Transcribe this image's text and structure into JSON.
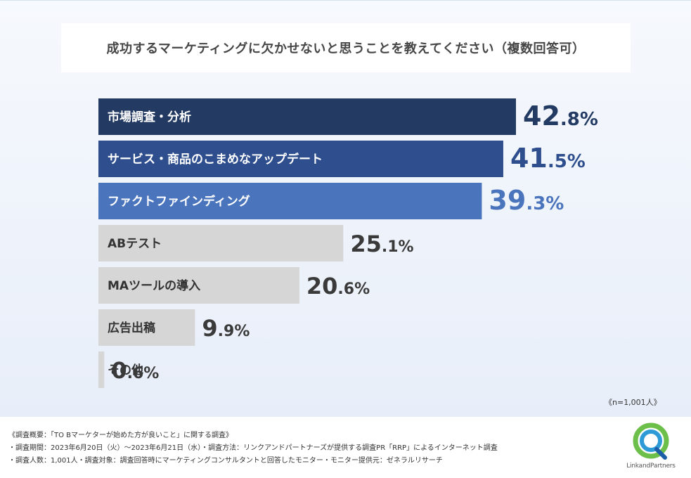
{
  "title": "成功するマーケティングに欠かせないと思うことを教えてください（複数回答可）",
  "sample_size": "《n=1,001人》",
  "chart_data": {
    "type": "bar",
    "orientation": "horizontal",
    "title": "成功するマーケティングに欠かせないと思うことを教えてください（複数回答可）",
    "unit": "%",
    "categories": [
      "市場調査・分析",
      "サービス・商品のこまめなアップデート",
      "ファクトファインディング",
      "ABテスト",
      "MAツールの導入",
      "広告出稿",
      "その他"
    ],
    "values": [
      42.8,
      41.5,
      39.3,
      25.1,
      20.6,
      9.9,
      0.6
    ],
    "value_labels": [
      {
        "int": "42",
        "dec": ".8%"
      },
      {
        "int": "41",
        "dec": ".5%"
      },
      {
        "int": "39",
        "dec": ".3%"
      },
      {
        "int": "25",
        "dec": ".1%"
      },
      {
        "int": "20",
        "dec": ".6%"
      },
      {
        "int": "9",
        "dec": ".9%"
      },
      {
        "int": "0",
        "dec": ".6%"
      }
    ],
    "bar_colors": [
      "#233a63",
      "#2e4e8e",
      "#4a75bd",
      "#d6d6d6",
      "#d6d6d6",
      "#d6d6d6",
      "#d6d6d6"
    ],
    "label_colors": [
      "#ffffff",
      "#ffffff",
      "#ffffff",
      "#333333",
      "#333333",
      "#333333",
      "#333333"
    ],
    "value_colors": [
      "#233a63",
      "#2e4e8e",
      "#4a75bd",
      "#3a3a3a",
      "#3a3a3a",
      "#3a3a3a",
      "#3a3a3a"
    ],
    "xlim": [
      0,
      42.8
    ]
  },
  "notes": [
    "《調査概要：「TO Bマーケターが始めた方が良いこと」に関する調査》",
    "・調査期間：2023年6月20日（火）～2023年6月21日（水）・調査方法：リンクアンドパートナーズが提供する調査PR「RRP」によるインターネット調査",
    "・調査人数：1,001人・調査対象：調査回答時にマーケティングコンサルタントと回答したモニター・モニター提供元：ゼネラルリサーチ"
  ],
  "logo": {
    "text": "LinkandPartners",
    "colors": [
      "#6cc04a",
      "#2f9bd6",
      "#1c5fa8"
    ]
  }
}
